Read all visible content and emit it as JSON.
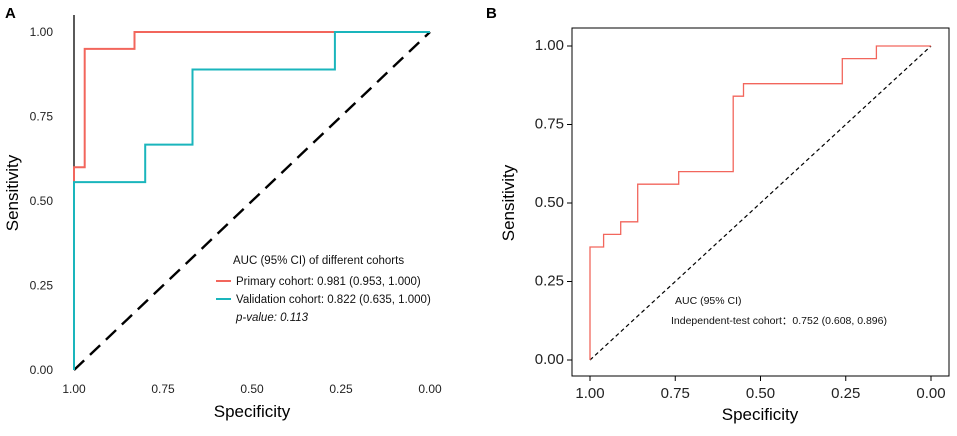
{
  "chart_data": [
    {
      "panel": "A",
      "type": "line",
      "title": "",
      "xlabel": "Specificity",
      "ylabel": "Sensitivity",
      "xlim": [
        1.0,
        0.0
      ],
      "ylim": [
        0.0,
        1.0
      ],
      "x_ticks": [
        "1.00",
        "0.75",
        "0.50",
        "0.25",
        "0.00"
      ],
      "y_ticks": [
        "0.00",
        "0.25",
        "0.50",
        "0.75",
        "1.00"
      ],
      "grid": false,
      "legend_position": "bottom-right",
      "legend_title": "AUC (95% CI) of different cohorts",
      "p_value_text": "p-value: 0.113",
      "series": [
        {
          "name": "Primary cohort",
          "label": "Primary cohort: 0.981 (0.953, 1.000)",
          "color": "#f2665c",
          "points": [
            [
              1.0,
              0.0
            ],
            [
              1.0,
              0.6
            ],
            [
              0.97,
              0.6
            ],
            [
              0.97,
              0.95
            ],
            [
              0.83,
              0.95
            ],
            [
              0.83,
              1.0
            ],
            [
              0.0,
              1.0
            ]
          ]
        },
        {
          "name": "Validation cohort",
          "label": "Validation cohort: 0.822 (0.635, 1.000)",
          "color": "#1ab5bc",
          "points": [
            [
              1.0,
              0.0
            ],
            [
              1.0,
              0.556
            ],
            [
              0.8,
              0.556
            ],
            [
              0.8,
              0.667
            ],
            [
              0.667,
              0.667
            ],
            [
              0.667,
              0.889
            ],
            [
              0.267,
              0.889
            ],
            [
              0.267,
              1.0
            ],
            [
              0.0,
              1.0
            ]
          ]
        }
      ],
      "reference_line": {
        "points": [
          [
            1.0,
            0.0
          ],
          [
            0.0,
            1.0
          ]
        ],
        "style": "dashed",
        "color": "#000000"
      }
    },
    {
      "panel": "B",
      "type": "line",
      "title": "",
      "xlabel": "Specificity",
      "ylabel": "Sensitivity",
      "xlim": [
        1.0,
        0.0
      ],
      "ylim": [
        0.0,
        1.0
      ],
      "x_ticks": [
        "1.00",
        "0.75",
        "0.50",
        "0.25",
        "0.00"
      ],
      "y_ticks": [
        "0.00",
        "0.25",
        "0.50",
        "0.75",
        "1.00"
      ],
      "grid": false,
      "legend_position": "bottom-center",
      "legend_title": "AUC (95% CI)",
      "series": [
        {
          "name": "Independent-test cohort",
          "label": "Independent-test cohort：0.752 (0.608, 0.896)",
          "color": "#f2665c",
          "points": [
            [
              1.0,
              0.0
            ],
            [
              1.0,
              0.36
            ],
            [
              0.96,
              0.36
            ],
            [
              0.96,
              0.4
            ],
            [
              0.91,
              0.4
            ],
            [
              0.91,
              0.44
            ],
            [
              0.86,
              0.44
            ],
            [
              0.86,
              0.56
            ],
            [
              0.74,
              0.56
            ],
            [
              0.74,
              0.6
            ],
            [
              0.58,
              0.6
            ],
            [
              0.58,
              0.84
            ],
            [
              0.55,
              0.84
            ],
            [
              0.55,
              0.88
            ],
            [
              0.26,
              0.88
            ],
            [
              0.26,
              0.96
            ],
            [
              0.16,
              0.96
            ],
            [
              0.16,
              1.0
            ],
            [
              0.0,
              1.0
            ]
          ]
        }
      ],
      "reference_line": {
        "points": [
          [
            1.0,
            0.0
          ],
          [
            0.0,
            1.0
          ]
        ],
        "style": "dashed",
        "color": "#000000"
      }
    }
  ]
}
